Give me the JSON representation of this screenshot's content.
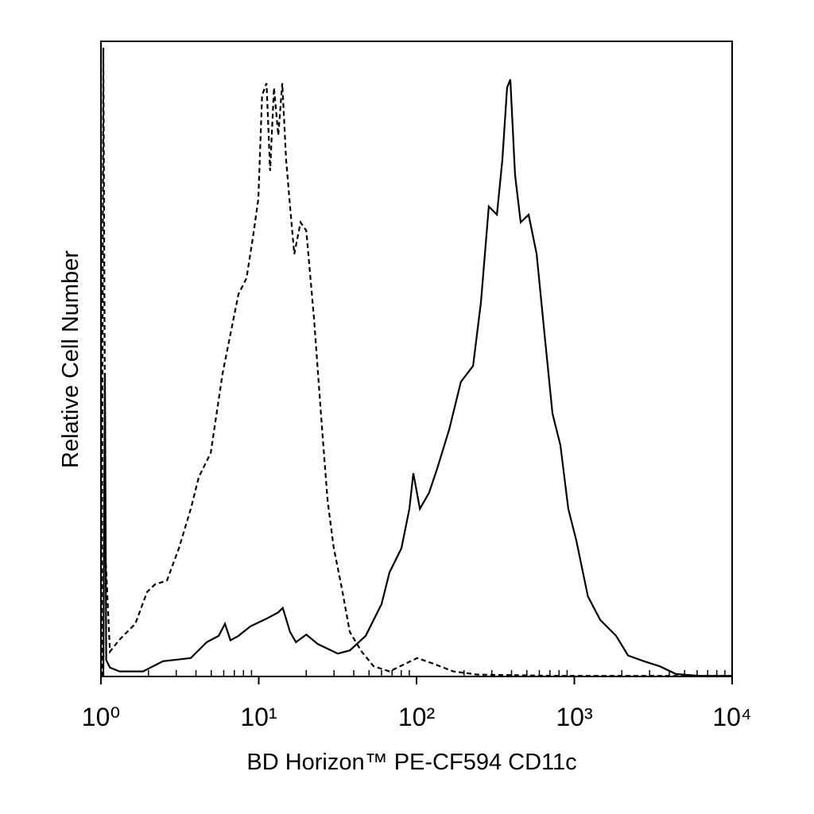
{
  "chart_data": {
    "type": "line",
    "xlabel": "BD Horizon™ PE-CF594 CD11c",
    "ylabel": "Relative Cell Number",
    "xscale": "log",
    "xlim": [
      1,
      10000
    ],
    "ylim": [
      0,
      100
    ],
    "xticks": [
      {
        "value": 1,
        "label": "10⁰"
      },
      {
        "value": 10,
        "label": "10¹"
      },
      {
        "value": 100,
        "label": "10²"
      },
      {
        "value": 1000,
        "label": "10³"
      },
      {
        "value": 10000,
        "label": "10⁴"
      }
    ],
    "xminorticks": [
      2,
      3,
      4,
      5,
      6,
      7,
      8,
      9,
      20,
      30,
      40,
      50,
      60,
      70,
      80,
      90,
      200,
      300,
      400,
      500,
      600,
      700,
      800,
      900,
      2000,
      3000,
      4000,
      5000,
      6000,
      7000,
      8000,
      9000
    ],
    "series": [
      {
        "color": "#000000",
        "line_style": "solid",
        "x": [
          1.035,
          1.06,
          1.08,
          1.14,
          1.31,
          1.85,
          2.47,
          3.71,
          4.68,
          5.57,
          6.11,
          6.62,
          7.44,
          8.85,
          11.2,
          13.3,
          14.2,
          15.8,
          17.2,
          20.0,
          23.7,
          31.7,
          37.8,
          47.6,
          60.0,
          67.4,
          80.2,
          90.1,
          95.5,
          105,
          120,
          135,
          161,
          191,
          228,
          256,
          287,
          323,
          350,
          375,
          393,
          421,
          457,
          513,
          577,
          647,
          727,
          816,
          916,
          1030,
          1220,
          1460,
          1840,
          2190,
          2760,
          3480,
          4390,
          6210,
          9890
        ],
        "values": [
          0,
          47.7,
          2.6,
          1.4,
          0.8,
          0.8,
          2.4,
          2.9,
          5.4,
          6.4,
          8.3,
          5.7,
          6.4,
          7.9,
          9.1,
          10.1,
          10.8,
          7.0,
          5.4,
          6.6,
          5.1,
          3.6,
          4.1,
          6.4,
          11.4,
          16.4,
          20.2,
          26.4,
          32.0,
          26.4,
          28.9,
          32.7,
          38.9,
          46.4,
          48.9,
          58.9,
          74.0,
          72.7,
          81.4,
          92.7,
          94.0,
          79.0,
          71.5,
          72.7,
          66.5,
          53.9,
          41.4,
          36.4,
          26.4,
          21.4,
          12.6,
          8.9,
          6.4,
          3.3,
          2.4,
          1.6,
          0.4,
          0.1,
          0.1
        ]
      },
      {
        "color": "#000000",
        "line_style": "dashed",
        "x": [
          1.01,
          1.035,
          1.07,
          1.14,
          1.31,
          1.65,
          1.96,
          2.2,
          2.62,
          3.12,
          3.71,
          4.17,
          4.96,
          5.9,
          6.62,
          7.44,
          8.36,
          9.17,
          9.94,
          10.5,
          11.2,
          11.8,
          12.5,
          13.3,
          14.1,
          14.9,
          15.8,
          16.8,
          18.4,
          20.0,
          22.4,
          25.2,
          27.3,
          29.9,
          33.6,
          37.8,
          44.9,
          53.5,
          67.4,
          84.9,
          101,
          128,
          171,
          242,
          771,
          2460,
          9890
        ],
        "values": [
          0,
          99.0,
          18.9,
          3.9,
          5.8,
          8.3,
          13.3,
          14.5,
          15.1,
          20.2,
          26.4,
          31.4,
          35.2,
          47.7,
          53.9,
          60.2,
          62.7,
          69.0,
          75.2,
          91.5,
          93.4,
          79.6,
          92.7,
          85.2,
          93.4,
          81.4,
          74.0,
          66.5,
          71.5,
          70.2,
          56.4,
          38.9,
          27.7,
          20.2,
          13.9,
          7.0,
          3.9,
          1.6,
          0.8,
          2.0,
          2.9,
          2.0,
          0.8,
          0.3,
          0.1,
          0.1,
          0.1
        ]
      }
    ]
  }
}
